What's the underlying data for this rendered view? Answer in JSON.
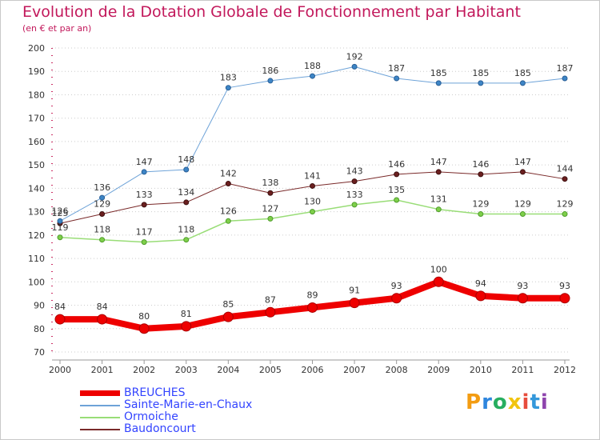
{
  "chart_data": {
    "type": "line",
    "title": "Evolution de la Dotation Globale de Fonctionnement par Habitant",
    "subtitle": "(en € et par an)",
    "x": [
      "2000",
      "2001",
      "2002",
      "2003",
      "2004",
      "2005",
      "2006",
      "2007",
      "2008",
      "2009",
      "2010",
      "2011",
      "2012"
    ],
    "ylim": [
      70,
      200
    ],
    "yticks": [
      70,
      80,
      90,
      100,
      110,
      120,
      130,
      140,
      150,
      160,
      170,
      180,
      190,
      200
    ],
    "grid": "horizontal-dotted",
    "legend_position": "bottom-left",
    "series": [
      {
        "name": "BREUCHES",
        "color": "#ee0000",
        "values": [
          84,
          84,
          80,
          81,
          85,
          87,
          89,
          91,
          93,
          100,
          94,
          93,
          93
        ]
      },
      {
        "name": "Sainte-Marie-en-Chaux",
        "color": "#6ea3d8",
        "values": [
          126,
          136,
          147,
          148,
          183,
          186,
          188,
          192,
          187,
          185,
          185,
          185,
          187
        ]
      },
      {
        "name": "Ormoiche",
        "color": "#99dd77",
        "values": [
          119,
          118,
          117,
          118,
          126,
          127,
          130,
          133,
          135,
          131,
          129,
          129,
          129
        ]
      },
      {
        "name": "Baudoncourt",
        "color": "#7a2a2a",
        "values": [
          125,
          129,
          133,
          134,
          142,
          138,
          141,
          143,
          146,
          147,
          146,
          147,
          144
        ]
      }
    ]
  },
  "logo": {
    "letters": [
      "P",
      "r",
      "o",
      "x",
      "i",
      "t",
      "i"
    ],
    "colors": [
      "#f39c12",
      "#2e86de",
      "#27ae60",
      "#f1c40f",
      "#e74c3c",
      "#3498db",
      "#8e44ad"
    ]
  }
}
